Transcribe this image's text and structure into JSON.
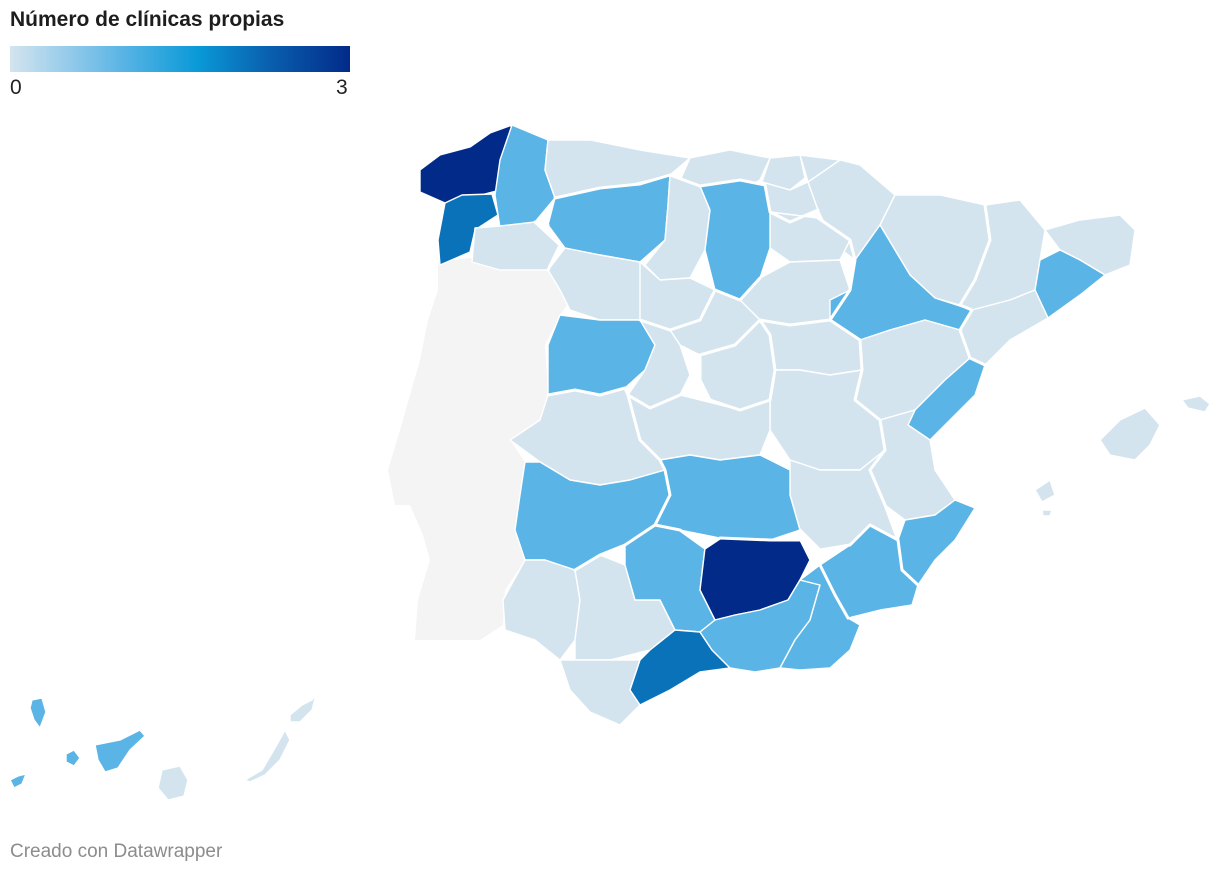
{
  "title": "Número de clínicas propias",
  "legend": {
    "min_label": "0",
    "max_label": "3",
    "min": 0,
    "max": 3,
    "colors": [
      "#d3e4ef",
      "#5ab4e5",
      "#0a72b8",
      "#022b89"
    ]
  },
  "credit": "Creado con Datawrapper",
  "colors": {
    "portugal": "#f4f4f4",
    "background": "#ffffff"
  },
  "chart_data": {
    "type": "choropleth",
    "title": "Número de clínicas propias",
    "regions": [
      {
        "name": "A Coruña",
        "value": 3
      },
      {
        "name": "Lugo",
        "value": 1
      },
      {
        "name": "Pontevedra",
        "value": 2
      },
      {
        "name": "Ourense",
        "value": 0
      },
      {
        "name": "Asturias",
        "value": 0
      },
      {
        "name": "Cantabria",
        "value": 0
      },
      {
        "name": "León",
        "value": 1
      },
      {
        "name": "Palencia",
        "value": 0
      },
      {
        "name": "Burgos",
        "value": 1
      },
      {
        "name": "Zamora",
        "value": 0
      },
      {
        "name": "Valladolid",
        "value": 0
      },
      {
        "name": "Salamanca",
        "value": 1
      },
      {
        "name": "Ávila",
        "value": 0
      },
      {
        "name": "Segovia",
        "value": 0
      },
      {
        "name": "Soria",
        "value": 0
      },
      {
        "name": "Bizkaia",
        "value": 0
      },
      {
        "name": "Gipuzkoa",
        "value": 0
      },
      {
        "name": "Araba",
        "value": 0
      },
      {
        "name": "La Rioja",
        "value": 0
      },
      {
        "name": "Navarra",
        "value": 0
      },
      {
        "name": "Huesca",
        "value": 0
      },
      {
        "name": "Zaragoza",
        "value": 1
      },
      {
        "name": "Teruel",
        "value": 0
      },
      {
        "name": "Lleida",
        "value": 0
      },
      {
        "name": "Girona",
        "value": 0
      },
      {
        "name": "Barcelona",
        "value": 1
      },
      {
        "name": "Tarragona",
        "value": 0
      },
      {
        "name": "Castellón",
        "value": 1
      },
      {
        "name": "Valencia",
        "value": 0
      },
      {
        "name": "Alicante",
        "value": 1
      },
      {
        "name": "Madrid",
        "value": 0
      },
      {
        "name": "Guadalajara",
        "value": 0
      },
      {
        "name": "Cuenca",
        "value": 0
      },
      {
        "name": "Toledo",
        "value": 0
      },
      {
        "name": "Ciudad Real",
        "value": 1
      },
      {
        "name": "Albacete",
        "value": 0
      },
      {
        "name": "Cáceres",
        "value": 0
      },
      {
        "name": "Badajoz",
        "value": 1
      },
      {
        "name": "Murcia",
        "value": 1
      },
      {
        "name": "Huelva",
        "value": 0
      },
      {
        "name": "Sevilla",
        "value": 0
      },
      {
        "name": "Cádiz",
        "value": 0
      },
      {
        "name": "Córdoba",
        "value": 1
      },
      {
        "name": "Jaén",
        "value": 3
      },
      {
        "name": "Málaga",
        "value": 2
      },
      {
        "name": "Granada",
        "value": 1
      },
      {
        "name": "Almería",
        "value": 1
      },
      {
        "name": "Illes Balears",
        "value": 0
      },
      {
        "name": "Santa Cruz de Tenerife",
        "value": 1
      },
      {
        "name": "Las Palmas",
        "value": 0
      }
    ]
  }
}
